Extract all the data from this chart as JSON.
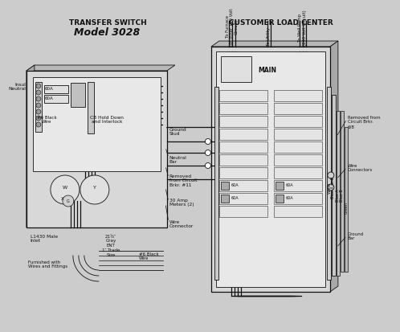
{
  "bg_color": "#cccccc",
  "line_color": "#111111",
  "title_left": "TRANSFER SWITCH",
  "title_right": "CUSTOMER LOAD CENTER",
  "model": "Model 3028",
  "annotations": {
    "insul_neutral": "Insul\nNeutral",
    "black_wire": "#6 Black\nWire",
    "cb_hold": "CB Hold Down\nand Interlock",
    "ground_stud": "Ground\nStud",
    "neutral_bar": "Neutral\nBar",
    "removed_11": "Removed\nfrom Circuit\nBrkr. #11",
    "meters": "30 Amp\nMeters (2)",
    "wire_conn": "Wire\nConnector",
    "l1430": "L1430 Male\nInlet",
    "furnished": "Furnished with\nWires and Fittings",
    "ent": "21¹⁄₂″\nGray\nENT\n1″ Trade\nSize",
    "black6": "#6 Black\nWire",
    "to_furnace": "To Furnace\n(or other 120 Volt\nCircuit)",
    "to_utility": "To Utility",
    "to_well": "To Well Pump\n(240 Volt Circuit)",
    "removed_68": "Removed from\nCircuit Brkr.\n6/8",
    "wire_connectors": "Wire\nConnectors",
    "ground_bar": "Ground\nBar",
    "white_label": "White",
    "blue_a_b": "Blue A or B",
    "blue_a": "Blue A",
    "blue_b": "Blue B",
    "green": "Green"
  }
}
